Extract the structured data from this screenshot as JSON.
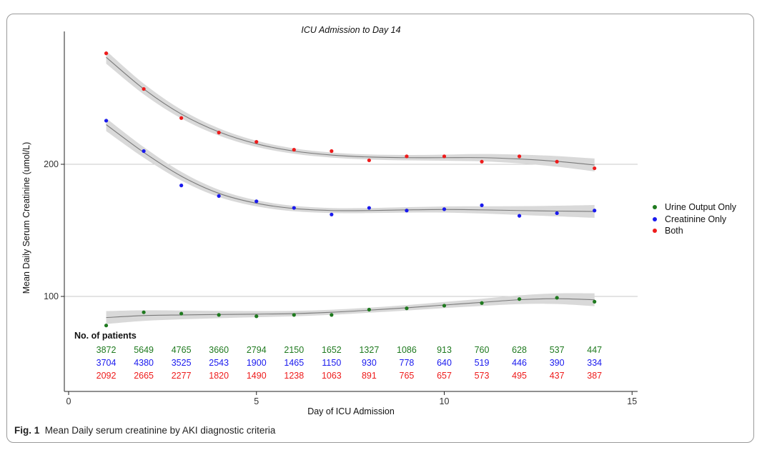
{
  "chart_data": {
    "type": "scatter",
    "title": "ICU Admission to Day 14",
    "xlabel": "Day of ICU Admission",
    "ylabel": "Mean Daily Serum Creatinine (umol/L)",
    "xlim": [
      0,
      15
    ],
    "ylim": [
      57,
      290
    ],
    "x_ticks": [
      "0",
      "5",
      "10",
      "15"
    ],
    "y_ticks": [
      "100",
      "200"
    ],
    "y_ref_lines": [
      100,
      200
    ],
    "legend_position": "right",
    "x": [
      1,
      2,
      3,
      4,
      5,
      6,
      7,
      8,
      9,
      10,
      11,
      12,
      13,
      14
    ],
    "series": [
      {
        "name": "Urine Output Only",
        "color": "#1f7a1f",
        "values": [
          78,
          88,
          87,
          86,
          85,
          86,
          86,
          90,
          91,
          93,
          95,
          98,
          99,
          96
        ],
        "smooth": [
          84,
          85.5,
          86,
          86.3,
          86.6,
          87,
          88,
          89.6,
          91.4,
          93.5,
          95.5,
          97.5,
          98.3,
          97.5
        ]
      },
      {
        "name": "Creatinine Only",
        "color": "#1a1aee",
        "values": [
          233,
          210,
          184,
          176,
          172,
          167,
          162,
          167,
          165,
          166,
          169,
          161,
          163,
          165
        ],
        "smooth": [
          230,
          209,
          191,
          178,
          170.5,
          166.5,
          165,
          165,
          165.5,
          165.8,
          165.5,
          165,
          164.6,
          164.3
        ]
      },
      {
        "name": "Both",
        "color": "#ee1c1c",
        "values": [
          284,
          257,
          235,
          224,
          217,
          211,
          210,
          203,
          206,
          206,
          202,
          206,
          202,
          197
        ],
        "smooth": [
          281,
          257,
          238,
          224.5,
          215.5,
          210,
          207,
          205.5,
          205,
          205,
          205,
          204,
          202.2,
          199.5
        ]
      }
    ],
    "patients": {
      "label": "No. of patients",
      "rows": [
        [
          "3872",
          "5649",
          "4765",
          "3660",
          "2794",
          "2150",
          "1652",
          "1327",
          "1086",
          "913",
          "760",
          "628",
          "537",
          "447"
        ],
        [
          "3704",
          "4380",
          "3525",
          "2543",
          "1900",
          "1465",
          "1150",
          "930",
          "778",
          "640",
          "519",
          "446",
          "390",
          "334"
        ],
        [
          "2092",
          "2665",
          "2277",
          "1820",
          "1490",
          "1238",
          "1063",
          "891",
          "765",
          "657",
          "573",
          "495",
          "437",
          "387"
        ]
      ]
    }
  },
  "caption": {
    "fig_label": "Fig. 1",
    "text": "Mean Daily serum creatinine by AKI diagnostic criteria"
  }
}
